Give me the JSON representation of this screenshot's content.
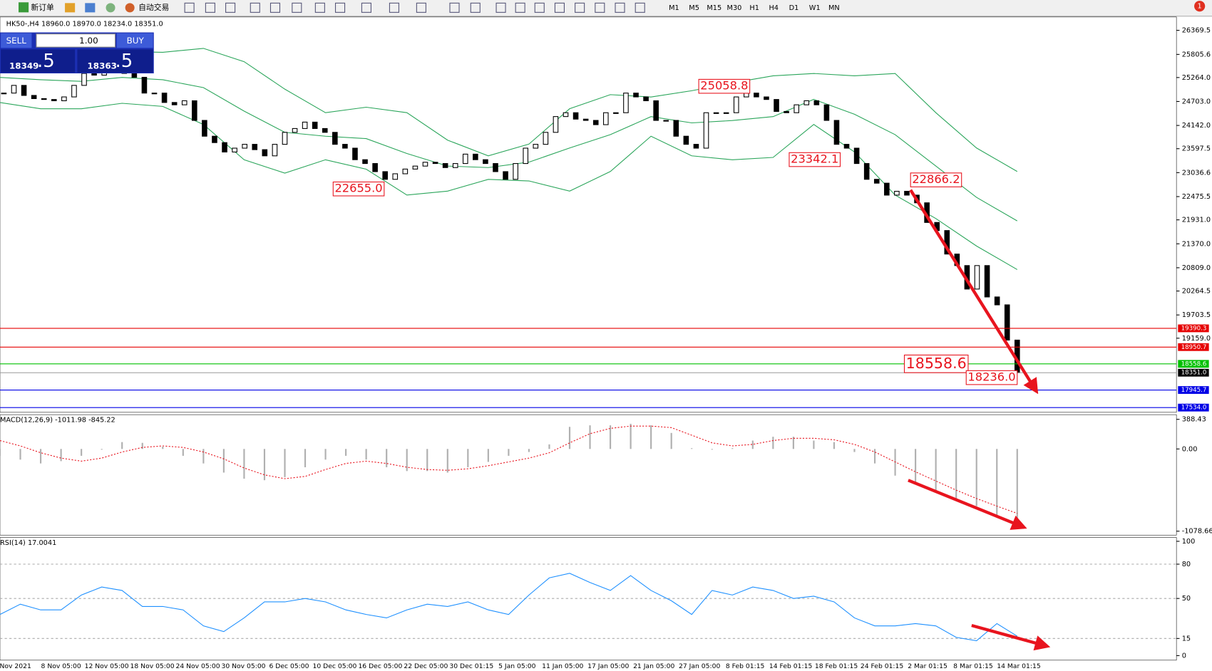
{
  "toolbar": {
    "new_order": "新订单",
    "auto_trading": "自动交易",
    "timeframes": [
      "M1",
      "M5",
      "M15",
      "M30",
      "H1",
      "H4",
      "D1",
      "W1",
      "MN"
    ],
    "notifications": "1"
  },
  "one_click": {
    "sell": "SELL",
    "buy": "BUY",
    "lots": "1.00",
    "bid_main": "18349",
    "bid_pips": ".5",
    "ask_main": "18363",
    "ask_pips": ".5"
  },
  "chart_data": [
    {
      "type": "candlestick",
      "title": "HK50-,H4  18960.0 18970.0 18234.0 18351.0",
      "closes": [
        24900,
        25080,
        24845,
        24770,
        24750,
        24720,
        24810,
        25080,
        25360,
        25320,
        25395,
        25540,
        25360,
        25270,
        24900,
        24900,
        24680,
        24625,
        24720,
        24260,
        23890,
        23740,
        23520,
        23610,
        23700,
        23575,
        23430,
        23700,
        23980,
        24070,
        24220,
        24070,
        23980,
        23700,
        23610,
        23340,
        23250,
        23060,
        22880,
        23010,
        23120,
        23190,
        23280,
        23250,
        23155,
        23250,
        23470,
        23340,
        23250,
        23060,
        22880,
        23250,
        23610,
        23700,
        23980,
        24350,
        24440,
        24290,
        24260,
        24160,
        24440,
        24440,
        24900,
        24810,
        24720,
        24260,
        24260,
        23890,
        23700,
        23610,
        24440,
        24440,
        24440,
        24810,
        24900,
        24810,
        24750,
        24470,
        24440,
        24625,
        24720,
        24625,
        24260,
        23700,
        23610,
        23250,
        22880,
        22790,
        22510,
        22600,
        22510,
        22330,
        21870,
        21680,
        21130,
        20860,
        20310,
        20860,
        20125,
        19940,
        19115,
        18351.0
      ],
      "upper_band": [
        25873,
        25873,
        25855,
        25873,
        25855,
        25947,
        25635,
        24992,
        24441,
        24569,
        24441,
        23798,
        23430,
        23706,
        24533,
        24863,
        24808,
        24955,
        25139,
        25304,
        25359,
        25304,
        25359,
        24441,
        23614,
        23063
      ],
      "middle_band": [
        25267,
        25212,
        25175,
        25267,
        25212,
        25028,
        24477,
        23981,
        23889,
        23834,
        23485,
        23191,
        23155,
        23283,
        23614,
        23926,
        24349,
        24202,
        24257,
        24349,
        24753,
        24404,
        23926,
        23191,
        22457,
        21906
      ],
      "lower_band": [
        24679,
        24533,
        24533,
        24661,
        24588,
        24165,
        23338,
        23026,
        23338,
        23118,
        22512,
        22604,
        22879,
        22842,
        22604,
        23063,
        23889,
        23430,
        23338,
        23393,
        24165,
        23522,
        22512,
        21961,
        21318,
        20767
      ],
      "x_labels": [
        "Nov 2021",
        "8 Nov 05:00",
        "12 Nov 05:00",
        "18 Nov 05:00",
        "24 Nov 05:00",
        "30 Nov 05:00",
        "6 Dec 05:00",
        "10 Dec 05:00",
        "16 Dec 05:00",
        "22 Dec 05:00",
        "30 Dec 01:15",
        "5 Jan 05:00",
        "11 Jan 05:00",
        "17 Jan 05:00",
        "21 Jan 05:00",
        "27 Jan 05:00",
        "8 Feb 01:15",
        "14 Feb 01:15",
        "18 Feb 01:15",
        "24 Feb 01:15",
        "2 Mar 01:15",
        "8 Mar 01:15",
        "14 Mar 01:15"
      ],
      "ylim": [
        17423,
        26682
      ],
      "yticks": [
        26369.5,
        25805.6,
        {
          "value": 25264,
          "label": "25264.0"
        },
        {
          "value": 24703,
          "label": "24703.0"
        },
        {
          "value": 24142,
          "label": "24142.0"
        },
        23597.5,
        23036.6,
        22475.5,
        {
          "value": 21931,
          "label": "21931.0"
        },
        {
          "value": 21370,
          "label": "21370.0"
        },
        {
          "value": 20809,
          "label": "20809.0"
        },
        20264.5,
        19703.5,
        {
          "value": 19159,
          "label": "19159.0"
        }
      ],
      "levels": [
        {
          "value": 19390.3,
          "label": "19390.3",
          "color": "#e60000"
        },
        {
          "value": 18950.7,
          "label": "18950.7",
          "color": "#e60000"
        },
        {
          "value": 18558.6,
          "label": "18558.6",
          "color": "#00c000"
        },
        {
          "value": 18351,
          "label": "18351.0",
          "color": "#000000"
        },
        {
          "value": 17945.7,
          "label": "17945.7",
          "color": "#0000e6"
        },
        {
          "value": 17534,
          "label": "17534.0",
          "color": "#0000e6"
        }
      ],
      "annotations": [
        {
          "value": 25058.8,
          "label": "25058.8"
        },
        {
          "value": 22655,
          "label": "22655.0"
        },
        {
          "value": 23342.1,
          "label": "23342.1"
        },
        {
          "value": 22866.2,
          "label": "22866.2"
        },
        {
          "value": 18558.6,
          "label": "18558.6"
        },
        {
          "value": 18236,
          "label": "18236.0"
        }
      ]
    },
    {
      "type": "macd",
      "title": "MACD(12,26,9) -1011.98 -845.22",
      "ylim": [
        -1130,
        450
      ],
      "yticks": [
        388.43,
        {
          "value": 0,
          "label": "0.00"
        },
        -1078.66
      ],
      "histogram": [
        -90,
        -140,
        -190,
        -160,
        -90,
        -10,
        90,
        80,
        30,
        -90,
        -190,
        -310,
        -390,
        -410,
        -370,
        -240,
        -140,
        -90,
        -140,
        -240,
        -290,
        -290,
        -310,
        -240,
        -170,
        -90,
        -40,
        60,
        290,
        310,
        310,
        330,
        310,
        210,
        10,
        -10,
        10,
        110,
        160,
        160,
        110,
        90,
        -40,
        -190,
        -350,
        -450,
        -550,
        -650,
        -750,
        -900,
        -1011.98
      ],
      "signal": [
        110,
        40,
        -50,
        -120,
        -160,
        -120,
        -40,
        20,
        40,
        20,
        -40,
        -130,
        -250,
        -340,
        -390,
        -360,
        -270,
        -190,
        -160,
        -190,
        -240,
        -270,
        -280,
        -260,
        -220,
        -170,
        -120,
        -50,
        80,
        200,
        270,
        300,
        300,
        280,
        180,
        80,
        40,
        60,
        110,
        140,
        140,
        120,
        60,
        -40,
        -170,
        -300,
        -420,
        -540,
        -650,
        -750,
        -845.22
      ]
    },
    {
      "type": "rsi",
      "title": "RSI(14) 17.0041",
      "ylim": [
        -4,
        103.4
      ],
      "yticks": [
        100,
        80,
        50,
        15,
        0
      ],
      "values": [
        36,
        45,
        40,
        40,
        53,
        60,
        57,
        43,
        43,
        40,
        26,
        21,
        33,
        47,
        47,
        50,
        47,
        40,
        36,
        33,
        40,
        45,
        43,
        47,
        40,
        36,
        53,
        68,
        72,
        64,
        57,
        70,
        57,
        48,
        36,
        57,
        53,
        60,
        57,
        50,
        52,
        47,
        33,
        26,
        26,
        28,
        26,
        16,
        13,
        28,
        17.0041
      ]
    }
  ]
}
